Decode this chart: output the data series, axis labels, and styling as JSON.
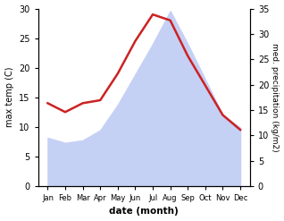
{
  "months": [
    "Jan",
    "Feb",
    "Mar",
    "Apr",
    "May",
    "Jun",
    "Jul",
    "Aug",
    "Sep",
    "Oct",
    "Nov",
    "Dec"
  ],
  "max_temp": [
    14.0,
    12.5,
    14.0,
    14.5,
    19.0,
    24.5,
    29.0,
    28.0,
    22.0,
    17.0,
    12.0,
    9.5
  ],
  "precipitation": [
    9.5,
    8.5,
    9.0,
    11.0,
    16.0,
    22.0,
    28.0,
    34.5,
    28.0,
    21.0,
    14.0,
    11.5
  ],
  "temp_color": "#cc2222",
  "precip_fill_color": "#c5d0f5",
  "temp_ylim": [
    0,
    30
  ],
  "precip_ylim": [
    0,
    35
  ],
  "temp_yticks": [
    0,
    5,
    10,
    15,
    20,
    25,
    30
  ],
  "precip_yticks": [
    0,
    5,
    10,
    15,
    20,
    25,
    30,
    35
  ],
  "ylabel_left": "max temp (C)",
  "ylabel_right": "med. precipitation (kg/m2)",
  "xlabel": "date (month)",
  "background_color": "#ffffff",
  "temp_linewidth": 1.8
}
